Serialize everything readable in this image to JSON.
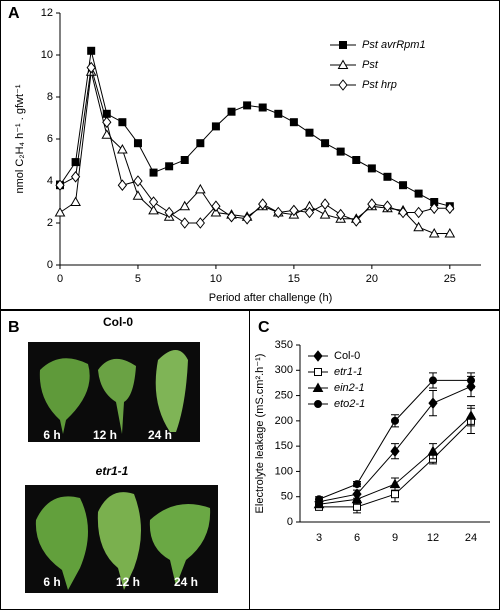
{
  "chart_data": [
    {
      "label": "A",
      "type": "line",
      "y_label": "nmol C₂H₄ h⁻¹ . gfwt⁻¹",
      "x_label": "Period after challenge (h)",
      "x": [
        0,
        1,
        2,
        3,
        4,
        5,
        6,
        7,
        8,
        9,
        10,
        11,
        12,
        13,
        14,
        15,
        16,
        17,
        18,
        19,
        20,
        21,
        22,
        23,
        24,
        25
      ],
      "xlim": [
        0,
        27
      ],
      "xticks": [
        0,
        5,
        10,
        15,
        20,
        25
      ],
      "ylim": [
        0,
        12
      ],
      "yticks": [
        0,
        2,
        4,
        6,
        8,
        10,
        12
      ],
      "series": [
        {
          "name": "Pst avrRpm1",
          "color": "#000000",
          "marker": "square",
          "filled": true,
          "italic": true,
          "values": [
            3.8,
            4.9,
            10.2,
            7.2,
            6.8,
            5.8,
            4.4,
            4.7,
            5.0,
            5.8,
            6.6,
            7.3,
            7.6,
            7.5,
            7.2,
            6.8,
            6.3,
            5.8,
            5.4,
            5.0,
            4.6,
            4.2,
            3.8,
            3.4,
            3.0,
            2.8
          ]
        },
        {
          "name": "Pst",
          "color": "#000000",
          "marker": "triangle",
          "filled": false,
          "italic": true,
          "values": [
            2.5,
            3.0,
            9.2,
            6.2,
            5.5,
            3.3,
            2.6,
            2.3,
            2.8,
            3.6,
            2.5,
            2.4,
            2.3,
            2.8,
            2.5,
            2.4,
            2.8,
            2.4,
            2.2,
            2.2,
            2.8,
            2.7,
            2.6,
            1.8,
            1.5,
            1.5
          ]
        },
        {
          "name": "Pst hrp",
          "color": "#000000",
          "marker": "diamond",
          "filled": false,
          "italic": true,
          "values": [
            3.8,
            4.2,
            9.4,
            6.8,
            3.8,
            4.0,
            3.0,
            2.5,
            2.0,
            2.0,
            2.8,
            2.3,
            2.2,
            2.9,
            2.5,
            2.6,
            2.5,
            2.9,
            2.4,
            2.1,
            2.9,
            2.8,
            2.5,
            2.5,
            2.7,
            2.7
          ]
        }
      ]
    },
    {
      "label": "C",
      "type": "line",
      "y_label": "Electrolyte leakage (mS.cm².h⁻¹)",
      "categories": [
        "3",
        "6",
        "9",
        "12",
        "24"
      ],
      "ylim": [
        0,
        350
      ],
      "yticks": [
        0,
        50,
        100,
        150,
        200,
        250,
        300,
        350
      ],
      "series": [
        {
          "name": "Col-0",
          "color": "#000000",
          "marker": "diamond",
          "filled": true,
          "italic": false,
          "values": [
            40,
            55,
            140,
            235,
            268
          ],
          "errors": [
            5,
            8,
            15,
            25,
            20
          ]
        },
        {
          "name": "etr1-1",
          "color": "#000000",
          "marker": "square",
          "filled": false,
          "italic": true,
          "values": [
            30,
            30,
            55,
            125,
            200
          ],
          "errors": [
            5,
            12,
            15,
            10,
            25
          ]
        },
        {
          "name": "ein2-1",
          "color": "#000000",
          "marker": "triangle",
          "filled": true,
          "italic": true,
          "values": [
            35,
            45,
            75,
            140,
            210
          ],
          "errors": [
            5,
            10,
            12,
            15,
            20
          ]
        },
        {
          "name": "eto2-1",
          "color": "#000000",
          "marker": "circle",
          "filled": true,
          "italic": true,
          "values": [
            45,
            75,
            200,
            280,
            280
          ],
          "errors": [
            5,
            5,
            12,
            15,
            15
          ]
        }
      ]
    }
  ],
  "photo_panel": {
    "label": "B",
    "groups": [
      {
        "title": "Col-0",
        "times": [
          "6 h",
          "12 h",
          "24 h"
        ]
      },
      {
        "title": "etr1-1",
        "times": [
          "6 h",
          "12 h",
          "24 h"
        ]
      }
    ]
  }
}
